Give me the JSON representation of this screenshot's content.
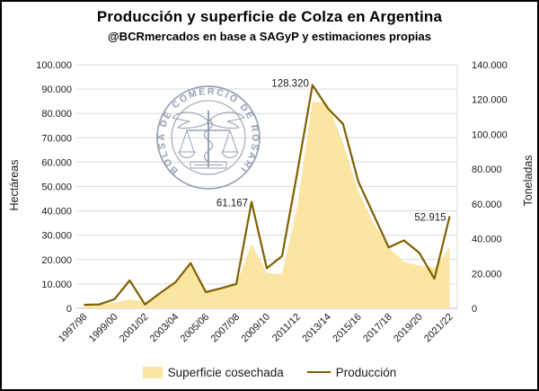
{
  "title": "Producción y superficie de Colza en Argentina",
  "subtitle": "@BCRmercados en base a SAGyP y estimaciones propias",
  "watermark": {
    "seal_text": "BOLSA DE COMERCIO DE ROSARIO",
    "color": "#8795A9"
  },
  "chart_data": {
    "type": "area+line combo",
    "title": "Producción y superficie de Colza en Argentina",
    "subtitle": "@BCRmercados en base a SAGyP y estimaciones propias",
    "ylabel_left": "Hectáreas",
    "ylabel_right": "Toneladas",
    "ylim_left": [
      0,
      100000
    ],
    "ylim_right": [
      0,
      140000
    ],
    "grid": "horizontal only",
    "legend_position": "bottom center",
    "categories": [
      "1997/98",
      "1998/99",
      "1999/00",
      "2000/01",
      "2001/02",
      "2002/03",
      "2003/04",
      "2004/05",
      "2005/06",
      "2006/07",
      "2007/08",
      "2008/09",
      "2009/10",
      "2010/11",
      "2011/12",
      "2012/13",
      "2013/14",
      "2014/15",
      "2015/16",
      "2016/17",
      "2017/18",
      "2018/19",
      "2019/20",
      "2020/21",
      "2021/22"
    ],
    "x_tick_labels": [
      "1997/98",
      "1999/00",
      "2001/02",
      "2003/04",
      "2005/06",
      "2007/08",
      "2009/10",
      "2011/12",
      "2013/14",
      "2015/16",
      "2017/18",
      "2019/20",
      "2021/22"
    ],
    "left_ticks": [
      "100.000",
      "90.000",
      "80.000",
      "70.000",
      "60.000",
      "50.000",
      "40.000",
      "30.000",
      "20.000",
      "10.000",
      "0"
    ],
    "right_ticks": [
      "140.000",
      "120.000",
      "100.000",
      "80.000",
      "60.000",
      "40.000",
      "20.000",
      "0"
    ],
    "series": [
      {
        "name": "Superficie cosechada",
        "type": "area",
        "axis": "left",
        "unit": "hectáreas",
        "color": "#FAE5A3",
        "values": [
          1200,
          1500,
          2200,
          3700,
          2500,
          6300,
          10800,
          18500,
          6600,
          8500,
          10000,
          26500,
          14500,
          14000,
          42000,
          85000,
          84000,
          68000,
          48000,
          35000,
          25000,
          19000,
          17600,
          16500,
          25000
        ]
      },
      {
        "name": "Producción",
        "type": "line",
        "axis": "right",
        "unit": "toneladas",
        "color": "#7F6000",
        "values": [
          2000,
          2200,
          5200,
          16000,
          2200,
          8800,
          15000,
          26000,
          9300,
          11500,
          14000,
          61167,
          23000,
          30000,
          78000,
          128320,
          115000,
          106000,
          73000,
          54000,
          35000,
          39000,
          32000,
          17000,
          52915
        ]
      }
    ],
    "data_labels": [
      {
        "series": "Producción",
        "index": 11,
        "text": "61.167"
      },
      {
        "series": "Producción",
        "index": 15,
        "text": "128.320"
      },
      {
        "series": "Producción",
        "index": 24,
        "text": "52.915"
      }
    ]
  }
}
